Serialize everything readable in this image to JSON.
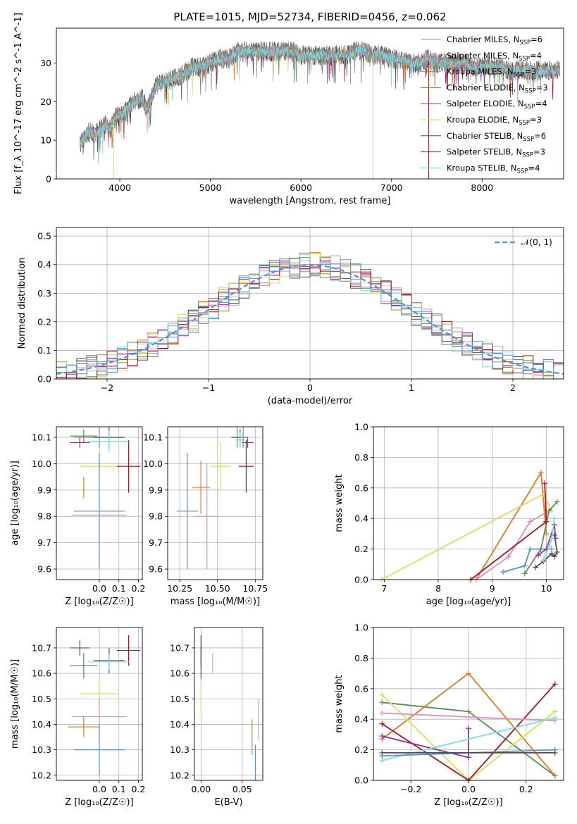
{
  "title": "PLATE=1015, MJD=52734, FIBERID=0456, z=0.062",
  "colors": {
    "Chabrier MILES": "#8c8c8c",
    "Salpeter MILES": "#e78ac3",
    "Kroupa MILES": "#e07a1f",
    "Chabrier ELODIE": "#5b8a5b",
    "Salpeter ELODIE": "#8e2ea0",
    "Kroupa ELODIE": "#d4e157",
    "Chabrier STELIB": "#4d4d4d",
    "Salpeter STELIB": "#a8141c",
    "Kroupa STELIB": "#78dde3",
    "gauss": "#5b8bd9"
  },
  "legend1": [
    {
      "key": "Chabrier MILES",
      "label": "Chabrier MILES, N",
      "n": "6"
    },
    {
      "key": "Salpeter MILES",
      "label": "Salpeter MILES, N",
      "n": "4"
    },
    {
      "key": "Kroupa MILES",
      "label": "Kroupa MILES, N",
      "n": "3"
    },
    {
      "key": "Chabrier ELODIE",
      "label": "Chabrier ELODIE, N",
      "n": "3"
    },
    {
      "key": "Salpeter ELODIE",
      "label": "Salpeter ELODIE, N",
      "n": "4"
    },
    {
      "key": "Kroupa ELODIE",
      "label": "Kroupa ELODIE, N",
      "n": "3"
    },
    {
      "key": "Chabrier STELIB",
      "label": "Chabrier STELIB, N",
      "n": "6"
    },
    {
      "key": "Salpeter STELIB",
      "label": "Salpeter STELIB, N",
      "n": "3"
    },
    {
      "key": "Kroupa STELIB",
      "label": "Kroupa STELIB, N",
      "n": "4"
    }
  ],
  "ssp_sub": "SSP",
  "chart_data": [
    {
      "type": "line",
      "id": "spectrum",
      "xlabel": "wavelength [Angstrom, rest frame]",
      "ylabel": "Flux [f_λ 10^-17 erg cm^-2 s^-1 A^-1]",
      "xlim": [
        3300,
        8900
      ],
      "ylim": [
        0,
        39
      ],
      "xticks": [
        4000,
        5000,
        6000,
        7000,
        8000
      ],
      "yticks": [
        0,
        10,
        20,
        30
      ],
      "continuum": [
        [
          3560,
          9
        ],
        [
          3650,
          12
        ],
        [
          3750,
          12
        ],
        [
          3850,
          14
        ],
        [
          3900,
          13
        ],
        [
          3950,
          16
        ],
        [
          4050,
          17
        ],
        [
          4150,
          20
        ],
        [
          4250,
          21
        ],
        [
          4300,
          18
        ],
        [
          4400,
          24
        ],
        [
          4500,
          25
        ],
        [
          4600,
          26
        ],
        [
          4700,
          27
        ],
        [
          4800,
          29
        ],
        [
          4900,
          29
        ],
        [
          5000,
          30
        ],
        [
          5100,
          31
        ],
        [
          5200,
          31
        ],
        [
          5300,
          33
        ],
        [
          5400,
          33
        ],
        [
          5500,
          33
        ],
        [
          5600,
          33
        ],
        [
          5700,
          33
        ],
        [
          5800,
          33
        ],
        [
          5900,
          33
        ],
        [
          6000,
          32
        ],
        [
          6100,
          32
        ],
        [
          6200,
          32
        ],
        [
          6300,
          32
        ],
        [
          6400,
          32
        ],
        [
          6500,
          32
        ],
        [
          6600,
          33
        ],
        [
          6700,
          33
        ],
        [
          6800,
          32
        ],
        [
          6900,
          32
        ],
        [
          7000,
          31
        ],
        [
          7100,
          31
        ],
        [
          7200,
          30
        ],
        [
          7300,
          30
        ],
        [
          7400,
          31
        ],
        [
          7500,
          30
        ],
        [
          7600,
          30
        ],
        [
          7700,
          30
        ],
        [
          7800,
          30
        ],
        [
          7900,
          29
        ],
        [
          8000,
          29
        ],
        [
          8100,
          29
        ],
        [
          8200,
          29
        ],
        [
          8300,
          28
        ],
        [
          8400,
          28
        ],
        [
          8500,
          28
        ],
        [
          8600,
          28
        ],
        [
          8700,
          28
        ],
        [
          8800,
          28
        ],
        [
          8860,
          28
        ]
      ],
      "spikes": [
        {
          "x": 3930,
          "y": 0,
          "series": "Kroupa ELODIE"
        },
        {
          "x": 6795,
          "y": 0,
          "series": "Kroupa ELODIE"
        },
        {
          "x": 7410,
          "y": 0,
          "series": "Salpeter STELIB"
        }
      ]
    },
    {
      "type": "histogram",
      "id": "residuals",
      "xlabel": "(data-model)/error",
      "ylabel": "Normed distribution",
      "xlim": [
        -2.5,
        2.5
      ],
      "ylim": [
        0,
        0.53
      ],
      "xticks": [
        -2,
        -1,
        0,
        1,
        2
      ],
      "yticks": [
        0,
        0.1,
        0.2,
        0.3,
        0.4,
        0.5
      ],
      "bin_width": 0.1,
      "legend": "N(0,1)"
    },
    {
      "type": "scatter",
      "id": "age_vs_z",
      "xlabel": "Z [log10(Z/Z☉)]",
      "ylabel": "age [log10(age/yr)]",
      "xlim": [
        -0.22,
        0.22
      ],
      "ylim": [
        9.56,
        10.14
      ],
      "xticks": [
        0.0,
        0.1,
        0.2
      ],
      "yticks": [
        9.6,
        9.7,
        9.8,
        9.9,
        10.0,
        10.1
      ],
      "points": [
        {
          "key": "Chabrier MILES",
          "x": 0.0,
          "xe": 0.13,
          "y": 10.1,
          "ye": 0.04
        },
        {
          "key": "Salpeter MILES",
          "x": 0.0,
          "xe": 0.14,
          "y": 9.805,
          "ye": 0.0
        },
        {
          "key": "Kroupa MILES",
          "x": -0.08,
          "xe": 0.0,
          "y": 9.91,
          "ye": 0.04
        },
        {
          "key": "Chabrier ELODIE",
          "x": -0.08,
          "xe": 0.07,
          "y": 10.105,
          "ye": 0.025
        },
        {
          "key": "Salpeter ELODIE",
          "x": -0.1,
          "xe": 0.05,
          "y": 10.08,
          "ye": 0.02
        },
        {
          "key": "Kroupa ELODIE",
          "x": 0.0,
          "xe": 0.1,
          "y": 9.99,
          "ye": 0.06
        },
        {
          "key": "Chabrier STELIB",
          "x": 0.05,
          "xe": 0.08,
          "y": 10.1,
          "ye": 0.04
        },
        {
          "key": "Salpeter STELIB",
          "x": 0.15,
          "xe": 0.06,
          "y": 9.99,
          "ye": 0.1
        },
        {
          "key": "Kroupa STELIB",
          "x": 0.05,
          "xe": 0.11,
          "y": 10.085,
          "ye": 0.04
        },
        {
          "key": "gauss",
          "x": 0.0,
          "xe": 0.13,
          "y": 9.82,
          "ye": 0.22
        }
      ]
    },
    {
      "type": "scatter",
      "id": "age_vs_mass",
      "xlabel": "mass [log10(M/M☉)]",
      "ylabel": "",
      "xlim": [
        10.17,
        10.8
      ],
      "ylim": [
        9.56,
        10.14
      ],
      "xticks": [
        10.25,
        10.5,
        10.75
      ],
      "yticks": [
        9.6,
        9.7,
        9.8,
        9.9,
        10.0,
        10.1
      ],
      "points": [
        {
          "key": "Salpeter MILES",
          "x": 10.43,
          "xe": 0.08,
          "y": 9.8,
          "ye": 0.2
        },
        {
          "key": "Kroupa MILES",
          "x": 10.39,
          "xe": 0.06,
          "y": 9.91,
          "ye": 0.1
        },
        {
          "key": "Kroupa ELODIE",
          "x": 10.52,
          "xe": 0.07,
          "y": 9.99,
          "ye": 0.09
        },
        {
          "key": "gauss",
          "x": 10.3,
          "xe": 0.07,
          "y": 9.82,
          "ye": 0.22
        },
        {
          "key": "Chabrier ELODIE",
          "x": 10.63,
          "xe": 0.04,
          "y": 10.1,
          "ye": 0.04
        },
        {
          "key": "Chabrier STELIB",
          "x": 10.65,
          "xe": 0.05,
          "y": 10.1,
          "ye": 0.03
        },
        {
          "key": "Salpeter ELODIE",
          "x": 10.7,
          "xe": 0.04,
          "y": 10.08,
          "ye": 0.02
        },
        {
          "key": "Kroupa STELIB",
          "x": 10.65,
          "xe": 0.03,
          "y": 10.09,
          "ye": 0.03
        },
        {
          "key": "Salpeter STELIB",
          "x": 10.69,
          "xe": 0.05,
          "y": 9.99,
          "ye": 0.1
        },
        {
          "key": "Chabrier MILES",
          "x": 10.67,
          "xe": 0.02,
          "y": 10.1,
          "ye": 0.04
        }
      ]
    },
    {
      "type": "line",
      "id": "weight_vs_age",
      "xlabel": "age [log10(age/yr)]",
      "ylabel": "mass weight",
      "xlim": [
        6.8,
        10.32
      ],
      "ylim": [
        0,
        1
      ],
      "xticks": [
        7,
        8,
        9,
        10
      ],
      "yticks": [
        0,
        0.2,
        0.4,
        0.6,
        0.8,
        1.0
      ],
      "series": [
        {
          "key": "Kroupa MILES",
          "pts": [
            [
              8.7,
              0.0
            ],
            [
              9.9,
              0.7
            ],
            [
              10.0,
              0.3
            ]
          ]
        },
        {
          "key": "Kroupa ELODIE",
          "pts": [
            [
              6.95,
              0.0
            ],
            [
              9.95,
              0.56
            ],
            [
              10.1,
              0.45
            ]
          ]
        },
        {
          "key": "Salpeter MILES",
          "pts": [
            [
              8.7,
              0.0
            ],
            [
              9.3,
              0.15
            ],
            [
              9.7,
              0.38
            ],
            [
              10.0,
              0.44
            ]
          ]
        },
        {
          "key": "gauss",
          "pts": [
            [
              9.2,
              0.05
            ],
            [
              9.6,
              0.09
            ],
            [
              9.7,
              0.2
            ],
            [
              10.1,
              0.2
            ]
          ]
        },
        {
          "key": "Chabrier ELODIE",
          "pts": [
            [
              9.6,
              0.04
            ],
            [
              9.9,
              0.2
            ],
            [
              10.05,
              0.45
            ],
            [
              10.2,
              0.51
            ]
          ]
        },
        {
          "key": "Salpeter STELIB",
          "pts": [
            [
              8.6,
              0.0
            ],
            [
              10.0,
              0.38
            ],
            [
              9.97,
              0.63
            ]
          ]
        },
        {
          "key": "Chabrier STELIB",
          "pts": [
            [
              9.8,
              0.08
            ],
            [
              9.95,
              0.12
            ],
            [
              10.1,
              0.17
            ],
            [
              10.15,
              0.15
            ],
            [
              10.2,
              0.18
            ],
            [
              10.15,
              0.29
            ]
          ]
        },
        {
          "key": "Salpeter ELODIE",
          "pts": [
            [
              9.85,
              0.16
            ],
            [
              10.0,
              0.2
            ],
            [
              10.15,
              0.36
            ],
            [
              10.17,
              0.27
            ]
          ]
        },
        {
          "key": "Kroupa STELIB",
          "pts": [
            [
              9.95,
              0.13
            ],
            [
              10.05,
              0.22
            ],
            [
              10.1,
              0.27
            ],
            [
              10.15,
              0.4
            ]
          ]
        }
      ]
    },
    {
      "type": "scatter",
      "id": "mass_vs_z",
      "xlabel": "Z [log10(Z/Z☉)]",
      "ylabel": "mass [log10(M/M☉)]",
      "xlim": [
        -0.22,
        0.22
      ],
      "ylim": [
        10.18,
        10.78
      ],
      "xticks": [
        0.0,
        0.1,
        0.2
      ],
      "yticks": [
        10.2,
        10.3,
        10.4,
        10.5,
        10.6,
        10.7
      ],
      "points": [
        {
          "key": "Salpeter STELIB",
          "x": 0.15,
          "xe": 0.06,
          "y": 10.69,
          "ye": 0.06
        },
        {
          "key": "Salpeter ELODIE",
          "x": -0.1,
          "xe": 0.05,
          "y": 10.7,
          "ye": 0.03
        },
        {
          "key": "Chabrier ELODIE",
          "x": -0.08,
          "xe": 0.07,
          "y": 10.63,
          "ye": 0.05
        },
        {
          "key": "Chabrier STELIB",
          "x": 0.05,
          "xe": 0.08,
          "y": 10.65,
          "ye": 0.05
        },
        {
          "key": "Kroupa STELIB",
          "x": 0.05,
          "xe": 0.11,
          "y": 10.645,
          "ye": 0.03
        },
        {
          "key": "Kroupa ELODIE",
          "x": 0.0,
          "xe": 0.1,
          "y": 10.52,
          "ye": 0.05
        },
        {
          "key": "Salpeter MILES",
          "x": 0.0,
          "xe": 0.14,
          "y": 10.43,
          "ye": 0.07
        },
        {
          "key": "Kroupa MILES",
          "x": -0.08,
          "xe": 0.08,
          "y": 10.39,
          "ye": 0.04
        },
        {
          "key": "gauss",
          "x": 0.0,
          "xe": 0.13,
          "y": 10.3,
          "ye": 0.1
        }
      ]
    },
    {
      "type": "scatter",
      "id": "mass_vs_ebv",
      "xlabel": "E(B-V)",
      "ylabel": "",
      "xlim": [
        -0.008,
        0.075
      ],
      "ylim": [
        10.18,
        10.78
      ],
      "xticks": [
        0.0,
        0.05
      ],
      "yticks": [
        10.2,
        10.3,
        10.4,
        10.5,
        10.6,
        10.7
      ],
      "points": [
        {
          "key": "Salpeter STELIB",
          "x": 0.0,
          "xe": 0.0,
          "y": 10.69,
          "ye": 0.06
        },
        {
          "key": "Chabrier STELIB",
          "x": 0.0,
          "xe": 0.0,
          "y": 10.64,
          "ye": 0.07
        },
        {
          "key": "Kroupa STELIB",
          "x": 0.014,
          "xe": 0.0,
          "y": 10.64,
          "ye": 0.04
        },
        {
          "key": "Kroupa ELODIE",
          "x": 0.0,
          "xe": 0.0,
          "y": 10.5,
          "ye": 0.08
        },
        {
          "key": "Salpeter MILES",
          "x": 0.07,
          "xe": 0.0,
          "y": 10.42,
          "ye": 0.08
        },
        {
          "key": "Kroupa MILES",
          "x": 0.062,
          "xe": 0.0,
          "y": 10.35,
          "ye": 0.07
        },
        {
          "key": "gauss",
          "x": 0.066,
          "xe": 0.0,
          "y": 10.25,
          "ye": 0.07
        }
      ]
    },
    {
      "type": "line",
      "id": "weight_vs_z",
      "xlabel": "Z [log10(Z/Z☉)]",
      "ylabel": "mass weight",
      "xlim": [
        -0.33,
        0.33
      ],
      "ylim": [
        0,
        1
      ],
      "xticks": [
        -0.2,
        0.0,
        0.2
      ],
      "yticks": [
        0,
        0.2,
        0.4,
        0.6,
        0.8,
        1.0
      ],
      "series": [
        {
          "key": "Chabrier ELODIE",
          "pts": [
            [
              -0.3,
              0.51
            ],
            [
              0.0,
              0.45
            ],
            [
              0.3,
              0.03
            ]
          ]
        },
        {
          "key": "Kroupa MILES",
          "pts": [
            [
              -0.3,
              0.27
            ],
            [
              0.0,
              0.7
            ],
            [
              0.3,
              0.03
            ]
          ]
        },
        {
          "key": "Kroupa ELODIE",
          "pts": [
            [
              -0.3,
              0.56
            ],
            [
              0.0,
              0.0
            ],
            [
              0.3,
              0.45
            ]
          ]
        },
        {
          "key": "Salpeter STELIB",
          "pts": [
            [
              -0.3,
              0.37
            ],
            [
              0.0,
              0.0
            ],
            [
              0.3,
              0.63
            ]
          ]
        },
        {
          "key": "Salpeter MILES",
          "pts": [
            [
              -0.3,
              0.44
            ],
            [
              0.3,
              0.39
            ]
          ]
        },
        {
          "key": "Salpeter ELODIE",
          "pts": [
            [
              -0.3,
              0.29
            ],
            [
              0.0,
              0.15
            ],
            [
              0.0,
              0.34
            ]
          ]
        },
        {
          "key": "Kroupa STELIB",
          "pts": [
            [
              -0.3,
              0.13
            ],
            [
              0.3,
              0.41
            ]
          ]
        },
        {
          "key": "gauss",
          "pts": [
            [
              -0.3,
              0.16
            ],
            [
              0.3,
              0.2
            ]
          ]
        },
        {
          "key": "Chabrier STELIB",
          "pts": [
            [
              -0.3,
              0.18
            ],
            [
              0.3,
              0.18
            ]
          ]
        }
      ]
    }
  ]
}
